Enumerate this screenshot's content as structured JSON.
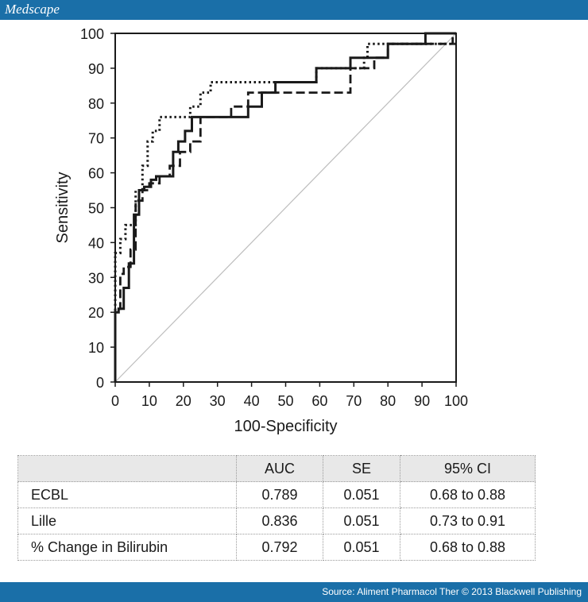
{
  "header": {
    "brand": "Medscape"
  },
  "footer": {
    "source": "Source: Aliment Pharmacol Ther © 2013 Blackwell Publishing"
  },
  "chart_data": {
    "type": "line",
    "title": "",
    "xlabel": "100-Specificity",
    "ylabel": "Sensitivity",
    "xlim": [
      0,
      100
    ],
    "ylim": [
      0,
      100
    ],
    "xticks": [
      0,
      10,
      20,
      30,
      40,
      50,
      60,
      70,
      80,
      90,
      100
    ],
    "yticks": [
      0,
      10,
      20,
      30,
      40,
      50,
      60,
      70,
      80,
      90,
      100
    ],
    "grid": false,
    "legend": "none",
    "reference_line": {
      "x": [
        0,
        100
      ],
      "y": [
        0,
        100
      ],
      "color": "#bdbdbd"
    },
    "series": [
      {
        "style": "solid",
        "color": "#1a1a1a",
        "x": [
          0,
          0,
          1,
          1,
          2.5,
          2.5,
          4,
          4,
          5.5,
          5.5,
          7,
          7,
          8.5,
          8.5,
          10.5,
          10.5,
          12,
          12,
          17,
          17,
          18.5,
          18.5,
          20.5,
          20.5,
          22.5,
          22.5,
          39,
          39,
          43,
          43,
          47,
          47,
          59,
          59,
          69,
          69,
          74,
          74,
          80,
          80,
          84,
          84,
          91,
          91,
          98,
          98,
          100
        ],
        "y": [
          0,
          20,
          20,
          21,
          21,
          27,
          27,
          34,
          34,
          48,
          48,
          55,
          55,
          56,
          56,
          58,
          58,
          59,
          59,
          66,
          66,
          69,
          69,
          72,
          72,
          76,
          76,
          79,
          79,
          83,
          83,
          86,
          86,
          90,
          90,
          93,
          93,
          93,
          93,
          97,
          97,
          97,
          97,
          100,
          100,
          100,
          100
        ]
      },
      {
        "style": "dashed",
        "color": "#1a1a1a",
        "x": [
          0,
          0,
          1.5,
          1.5,
          2.5,
          2.5,
          4.5,
          4.5,
          6,
          6,
          8,
          8,
          10,
          10,
          13,
          13,
          16,
          16,
          19,
          19,
          22,
          22,
          25,
          25,
          31,
          31,
          34,
          34,
          39,
          39,
          69,
          69,
          76,
          76,
          80,
          80,
          86,
          86,
          91,
          91,
          99,
          99,
          100
        ],
        "y": [
          0,
          21,
          21,
          31,
          31,
          33,
          33,
          38,
          38,
          52,
          52,
          55,
          55,
          57,
          57,
          59,
          59,
          62,
          62,
          66,
          66,
          69,
          69,
          76,
          76,
          76,
          76,
          79,
          79,
          83,
          83,
          90,
          90,
          93,
          93,
          97,
          97,
          97,
          97,
          97,
          97,
          100,
          100
        ]
      },
      {
        "style": "dotted",
        "color": "#1a1a1a",
        "x": [
          0,
          0,
          1.5,
          1.5,
          3,
          3,
          6,
          6,
          8,
          8,
          9.5,
          9.5,
          11,
          11,
          13,
          13,
          22,
          22,
          25,
          25,
          28,
          28,
          48,
          48,
          59,
          59,
          73,
          73,
          74,
          74,
          80,
          80,
          98,
          98,
          100
        ],
        "y": [
          0,
          37,
          37,
          41,
          41,
          45,
          45,
          55,
          55,
          62,
          62,
          69,
          69,
          72,
          72,
          76,
          76,
          79,
          79,
          83,
          83,
          86,
          86,
          86,
          86,
          90,
          90,
          93,
          93,
          97,
          97,
          97,
          97,
          97,
          97
        ]
      }
    ]
  },
  "table": {
    "headers": [
      "",
      "AUC",
      "SE",
      "95% CI"
    ],
    "rows": [
      {
        "label": "ECBL",
        "auc": "0.789",
        "se": "0.051",
        "ci": "0.68 to 0.88"
      },
      {
        "label": "Lille",
        "auc": "0.836",
        "se": "0.051",
        "ci": "0.73 to 0.91"
      },
      {
        "label": "% Change in Bilirubin",
        "auc": "0.792",
        "se": "0.051",
        "ci": "0.68 to 0.88"
      }
    ]
  }
}
